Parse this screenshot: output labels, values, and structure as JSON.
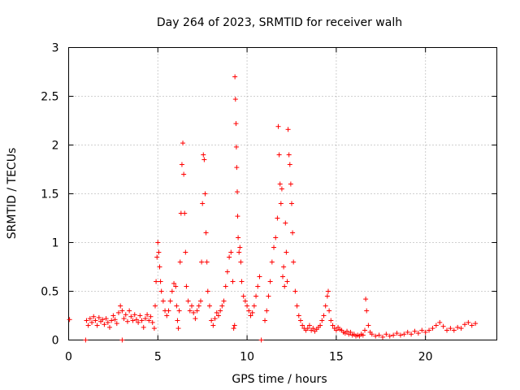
{
  "chart_data": {
    "type": "scatter",
    "title": "Day 264 of 2023, SRMTID for receiver walh",
    "xlabel": "GPS time / hours",
    "ylabel": "SRMTID / TECUs",
    "xlim": [
      0,
      24
    ],
    "ylim": [
      0,
      3
    ],
    "xticks": [
      0,
      5,
      10,
      15,
      20
    ],
    "xtick_labels": [
      "0",
      "5",
      "10",
      "15",
      "20"
    ],
    "yticks": [
      0,
      0.5,
      1,
      1.5,
      2,
      2.5,
      3
    ],
    "ytick_labels": [
      "0",
      "0.5",
      "1",
      "1.5",
      "2",
      "2.5",
      "3"
    ],
    "grid": true,
    "marker": "+",
    "color": "#ff0000",
    "series": [
      {
        "name": "SRMTID",
        "points": [
          [
            0.05,
            0.21
          ],
          [
            0.95,
            0.0
          ],
          [
            1.0,
            0.2
          ],
          [
            1.1,
            0.15
          ],
          [
            1.2,
            0.22
          ],
          [
            1.3,
            0.18
          ],
          [
            1.4,
            0.24
          ],
          [
            1.5,
            0.2
          ],
          [
            1.6,
            0.15
          ],
          [
            1.7,
            0.23
          ],
          [
            1.8,
            0.19
          ],
          [
            1.9,
            0.21
          ],
          [
            2.0,
            0.16
          ],
          [
            2.1,
            0.22
          ],
          [
            2.2,
            0.18
          ],
          [
            2.3,
            0.13
          ],
          [
            2.4,
            0.2
          ],
          [
            2.5,
            0.25
          ],
          [
            2.6,
            0.21
          ],
          [
            2.7,
            0.17
          ],
          [
            2.8,
            0.28
          ],
          [
            2.9,
            0.35
          ],
          [
            3.0,
            0.3
          ],
          [
            3.0,
            0.0
          ],
          [
            3.1,
            0.22
          ],
          [
            3.2,
            0.26
          ],
          [
            3.3,
            0.19
          ],
          [
            3.4,
            0.3
          ],
          [
            3.5,
            0.24
          ],
          [
            3.6,
            0.2
          ],
          [
            3.7,
            0.26
          ],
          [
            3.8,
            0.21
          ],
          [
            3.9,
            0.18
          ],
          [
            4.0,
            0.25
          ],
          [
            4.1,
            0.2
          ],
          [
            4.2,
            0.13
          ],
          [
            4.3,
            0.22
          ],
          [
            4.4,
            0.26
          ],
          [
            4.5,
            0.2
          ],
          [
            4.6,
            0.24
          ],
          [
            4.7,
            0.18
          ],
          [
            4.8,
            0.12
          ],
          [
            4.85,
            0.35
          ],
          [
            4.9,
            0.6
          ],
          [
            4.95,
            0.85
          ],
          [
            5.0,
            1.0
          ],
          [
            5.05,
            0.9
          ],
          [
            5.1,
            0.75
          ],
          [
            5.15,
            0.6
          ],
          [
            5.2,
            0.5
          ],
          [
            5.3,
            0.4
          ],
          [
            5.4,
            0.3
          ],
          [
            5.5,
            0.25
          ],
          [
            5.6,
            0.3
          ],
          [
            5.7,
            0.4
          ],
          [
            5.8,
            0.5
          ],
          [
            5.9,
            0.58
          ],
          [
            6.0,
            0.55
          ],
          [
            6.05,
            0.35
          ],
          [
            6.1,
            0.2
          ],
          [
            6.15,
            0.12
          ],
          [
            6.2,
            0.3
          ],
          [
            6.25,
            0.8
          ],
          [
            6.3,
            1.3
          ],
          [
            6.35,
            1.8
          ],
          [
            6.4,
            2.02
          ],
          [
            6.45,
            1.7
          ],
          [
            6.5,
            1.3
          ],
          [
            6.55,
            0.9
          ],
          [
            6.6,
            0.55
          ],
          [
            6.7,
            0.4
          ],
          [
            6.8,
            0.3
          ],
          [
            6.9,
            0.35
          ],
          [
            7.0,
            0.28
          ],
          [
            7.1,
            0.22
          ],
          [
            7.2,
            0.3
          ],
          [
            7.3,
            0.35
          ],
          [
            7.4,
            0.4
          ],
          [
            7.45,
            0.8
          ],
          [
            7.5,
            1.4
          ],
          [
            7.55,
            1.9
          ],
          [
            7.6,
            1.85
          ],
          [
            7.65,
            1.5
          ],
          [
            7.7,
            1.1
          ],
          [
            7.75,
            0.8
          ],
          [
            7.8,
            0.5
          ],
          [
            7.9,
            0.35
          ],
          [
            8.0,
            0.2
          ],
          [
            8.1,
            0.15
          ],
          [
            8.2,
            0.22
          ],
          [
            8.3,
            0.28
          ],
          [
            8.4,
            0.25
          ],
          [
            8.5,
            0.3
          ],
          [
            8.6,
            0.35
          ],
          [
            8.7,
            0.4
          ],
          [
            8.8,
            0.55
          ],
          [
            8.9,
            0.7
          ],
          [
            9.0,
            0.85
          ],
          [
            9.1,
            0.9
          ],
          [
            9.2,
            0.6
          ],
          [
            9.25,
            0.12
          ],
          [
            9.3,
            0.15
          ],
          [
            9.32,
            2.7
          ],
          [
            9.35,
            2.47
          ],
          [
            9.38,
            2.22
          ],
          [
            9.4,
            1.98
          ],
          [
            9.42,
            1.77
          ],
          [
            9.45,
            1.52
          ],
          [
            9.47,
            1.27
          ],
          [
            9.5,
            1.05
          ],
          [
            9.55,
            0.9
          ],
          [
            9.6,
            0.95
          ],
          [
            9.65,
            0.8
          ],
          [
            9.7,
            0.6
          ],
          [
            9.8,
            0.45
          ],
          [
            9.9,
            0.4
          ],
          [
            10.0,
            0.35
          ],
          [
            10.1,
            0.3
          ],
          [
            10.2,
            0.25
          ],
          [
            10.3,
            0.28
          ],
          [
            10.4,
            0.35
          ],
          [
            10.5,
            0.45
          ],
          [
            10.6,
            0.55
          ],
          [
            10.7,
            0.65
          ],
          [
            10.8,
            0.0
          ],
          [
            11.0,
            0.2
          ],
          [
            11.1,
            0.3
          ],
          [
            11.2,
            0.45
          ],
          [
            11.3,
            0.6
          ],
          [
            11.4,
            0.8
          ],
          [
            11.5,
            0.95
          ],
          [
            11.6,
            1.05
          ],
          [
            11.7,
            1.25
          ],
          [
            11.75,
            2.19
          ],
          [
            11.8,
            1.9
          ],
          [
            11.85,
            1.6
          ],
          [
            11.9,
            1.4
          ],
          [
            11.95,
            1.55
          ],
          [
            12.0,
            0.65
          ],
          [
            12.05,
            0.75
          ],
          [
            12.1,
            0.55
          ],
          [
            12.15,
            1.2
          ],
          [
            12.2,
            0.9
          ],
          [
            12.25,
            0.6
          ],
          [
            12.3,
            2.16
          ],
          [
            12.35,
            1.9
          ],
          [
            12.4,
            1.8
          ],
          [
            12.45,
            1.6
          ],
          [
            12.5,
            1.4
          ],
          [
            12.55,
            1.1
          ],
          [
            12.6,
            0.8
          ],
          [
            12.7,
            0.5
          ],
          [
            12.8,
            0.35
          ],
          [
            12.9,
            0.25
          ],
          [
            13.0,
            0.2
          ],
          [
            13.1,
            0.15
          ],
          [
            13.2,
            0.12
          ],
          [
            13.3,
            0.1
          ],
          [
            13.4,
            0.12
          ],
          [
            13.5,
            0.15
          ],
          [
            13.6,
            0.1
          ],
          [
            13.7,
            0.12
          ],
          [
            13.8,
            0.09
          ],
          [
            13.9,
            0.11
          ],
          [
            14.0,
            0.13
          ],
          [
            14.1,
            0.15
          ],
          [
            14.2,
            0.2
          ],
          [
            14.3,
            0.25
          ],
          [
            14.4,
            0.35
          ],
          [
            14.5,
            0.45
          ],
          [
            14.55,
            0.5
          ],
          [
            14.6,
            0.3
          ],
          [
            14.7,
            0.2
          ],
          [
            14.8,
            0.15
          ],
          [
            14.9,
            0.12
          ],
          [
            15.0,
            0.1
          ],
          [
            15.1,
            0.13
          ],
          [
            15.2,
            0.11
          ],
          [
            15.3,
            0.1
          ],
          [
            15.4,
            0.08
          ],
          [
            15.5,
            0.07
          ],
          [
            15.6,
            0.09
          ],
          [
            15.7,
            0.06
          ],
          [
            15.8,
            0.08
          ],
          [
            15.9,
            0.05
          ],
          [
            16.0,
            0.06
          ],
          [
            16.1,
            0.04
          ],
          [
            16.2,
            0.05
          ],
          [
            16.3,
            0.04
          ],
          [
            16.4,
            0.06
          ],
          [
            16.5,
            0.05
          ],
          [
            16.6,
            0.1
          ],
          [
            16.65,
            0.42
          ],
          [
            16.7,
            0.3
          ],
          [
            16.8,
            0.15
          ],
          [
            16.9,
            0.08
          ],
          [
            17.0,
            0.06
          ],
          [
            17.2,
            0.04
          ],
          [
            17.4,
            0.05
          ],
          [
            17.6,
            0.03
          ],
          [
            17.8,
            0.06
          ],
          [
            18.0,
            0.04
          ],
          [
            18.2,
            0.05
          ],
          [
            18.4,
            0.07
          ],
          [
            18.6,
            0.05
          ],
          [
            18.8,
            0.06
          ],
          [
            19.0,
            0.08
          ],
          [
            19.2,
            0.06
          ],
          [
            19.4,
            0.09
          ],
          [
            19.6,
            0.07
          ],
          [
            19.8,
            0.1
          ],
          [
            20.0,
            0.08
          ],
          [
            20.2,
            0.1
          ],
          [
            20.4,
            0.12
          ],
          [
            20.6,
            0.15
          ],
          [
            20.8,
            0.18
          ],
          [
            21.0,
            0.14
          ],
          [
            21.2,
            0.1
          ],
          [
            21.4,
            0.12
          ],
          [
            21.6,
            0.1
          ],
          [
            21.8,
            0.13
          ],
          [
            22.0,
            0.12
          ],
          [
            22.2,
            0.16
          ],
          [
            22.4,
            0.18
          ],
          [
            22.6,
            0.15
          ],
          [
            22.8,
            0.17
          ]
        ]
      }
    ]
  }
}
